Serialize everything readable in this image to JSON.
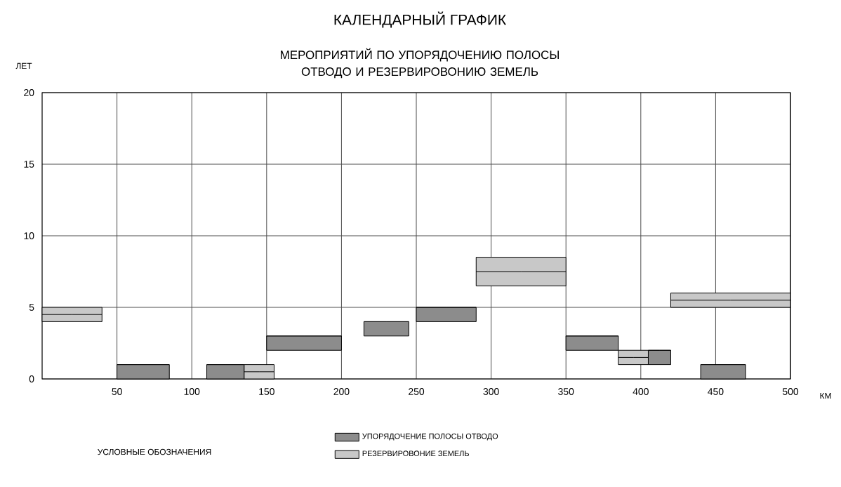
{
  "chart_data": {
    "type": "bar",
    "title": "КАЛЕНДАРНЫЙ ГРАФИК",
    "subtitle": "МЕРОПРИЯТИЙ ПО УПОРЯДОЧЕНИЮ ПОЛОСЫ ОТВОДО И РЕЗЕРВИРОВОНИЮ ЗЕМЕЛЬ",
    "xlabel": "КМ",
    "ylabel": "ЛЕТ",
    "legend_title": "УСЛОВНЫЕ ОБОЗНАЧЕНИЯ",
    "xlim": [
      0,
      500
    ],
    "ylim": [
      0,
      20
    ],
    "xticks": [
      50,
      100,
      150,
      200,
      250,
      300,
      350,
      400,
      450,
      500
    ],
    "yticks": [
      0,
      5,
      10,
      15,
      20
    ],
    "grid": true,
    "legend": "bottom",
    "series": [
      {
        "name": "УПОРЯДОЧЕНИЕ ПОЛОСЫ ОТВОДО",
        "color": "#8c8c8c",
        "x": [
          67.5,
          122.5,
          175,
          230,
          270,
          367.5,
          412.5,
          455
        ],
        "xerrors": [
          [
            50,
            85
          ],
          [
            110,
            135
          ],
          [
            150,
            200
          ],
          [
            215,
            245
          ],
          [
            250,
            290
          ],
          [
            350,
            385
          ],
          [
            405,
            420
          ],
          [
            440,
            470
          ]
        ],
        "base": [
          0,
          0,
          2,
          3,
          4,
          2,
          1,
          0
        ],
        "values": [
          1,
          1,
          1,
          1,
          1,
          1,
          1,
          1
        ]
      },
      {
        "name": "РЕЗЕРВИРОВОНИЕ ЗЕМЕЛЬ",
        "color": "#c8c8c8",
        "x": [
          20,
          145,
          320,
          395,
          460
        ],
        "xerrors": [
          [
            0,
            40
          ],
          [
            135,
            155
          ],
          [
            290,
            350
          ],
          [
            385,
            405
          ],
          [
            420,
            500
          ]
        ],
        "base": [
          4,
          0,
          6.5,
          1,
          5
        ],
        "values": [
          1,
          1,
          2,
          1,
          1
        ]
      }
    ]
  }
}
